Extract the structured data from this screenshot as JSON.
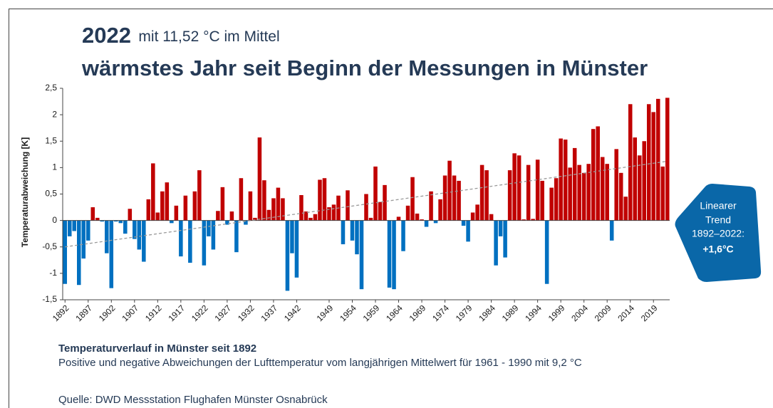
{
  "chart_data": {
    "type": "bar",
    "title": "2022",
    "title_suffix": "mit 11,52 °C im Mittel",
    "subtitle": "wärmstes Jahr seit Beginn der Messungen in Münster",
    "y_label": "Temperaturabweichung [K]",
    "caption_title": "Temperaturverlauf in Münster seit 1892",
    "caption": "Positive und negative Abweichungen der Lufttemperatur vom langjährigen Mittelwert für 1961 - 1990 mit 9,2 °C",
    "source": "Quelle: DWD Messstation Flughafen Münster Osnabrück",
    "x": [
      1892,
      1893,
      1894,
      1895,
      1896,
      1897,
      1898,
      1899,
      1900,
      1901,
      1902,
      1903,
      1904,
      1905,
      1906,
      1907,
      1908,
      1909,
      1910,
      1911,
      1912,
      1913,
      1914,
      1915,
      1916,
      1917,
      1918,
      1919,
      1920,
      1921,
      1922,
      1923,
      1924,
      1925,
      1926,
      1927,
      1928,
      1929,
      1930,
      1931,
      1932,
      1933,
      1934,
      1935,
      1936,
      1937,
      1938,
      1939,
      1940,
      1941,
      1942,
      1943,
      1944,
      1945,
      1946,
      1947,
      1948,
      1949,
      1950,
      1951,
      1952,
      1953,
      1954,
      1955,
      1956,
      1957,
      1958,
      1959,
      1960,
      1961,
      1962,
      1963,
      1964,
      1965,
      1966,
      1967,
      1968,
      1969,
      1970,
      1971,
      1972,
      1973,
      1974,
      1975,
      1976,
      1977,
      1978,
      1979,
      1980,
      1981,
      1982,
      1983,
      1984,
      1985,
      1986,
      1987,
      1988,
      1989,
      1990,
      1991,
      1992,
      1993,
      1994,
      1995,
      1996,
      1997,
      1998,
      1999,
      2000,
      2001,
      2002,
      2003,
      2004,
      2005,
      2006,
      2007,
      2008,
      2009,
      2010,
      2011,
      2012,
      2013,
      2014,
      2015,
      2016,
      2017,
      2018,
      2019,
      2020,
      2021,
      2022
    ],
    "values": [
      -1.2,
      -0.3,
      -0.2,
      -1.22,
      -0.72,
      -0.38,
      0.25,
      0.05,
      -0.02,
      -0.62,
      -1.28,
      -0.02,
      -0.05,
      -0.25,
      0.22,
      -0.35,
      -0.55,
      -0.78,
      0.4,
      1.08,
      0.15,
      0.55,
      0.72,
      -0.05,
      0.28,
      -0.68,
      0.47,
      -0.8,
      0.55,
      0.95,
      -0.85,
      -0.3,
      -0.55,
      0.18,
      0.63,
      -0.08,
      0.17,
      -0.6,
      0.8,
      -0.08,
      0.55,
      0.05,
      1.57,
      0.76,
      0.2,
      0.42,
      0.62,
      0.42,
      -1.33,
      -0.62,
      -1.08,
      0.48,
      0.17,
      0.05,
      0.12,
      0.77,
      0.8,
      0.25,
      0.3,
      0.47,
      -0.45,
      0.57,
      -0.38,
      -0.64,
      -1.3,
      0.5,
      0.05,
      1.02,
      0.35,
      0.67,
      -1.27,
      -1.3,
      0.07,
      -0.58,
      0.28,
      0.82,
      0.13,
      0.02,
      -0.12,
      0.55,
      -0.05,
      0.4,
      0.85,
      1.13,
      0.85,
      0.75,
      -0.1,
      -0.4,
      0.15,
      0.3,
      1.05,
      0.95,
      0.12,
      -0.85,
      -0.3,
      -0.7,
      0.95,
      1.27,
      1.23,
      0.02,
      1.05,
      0.03,
      1.15,
      0.75,
      -1.2,
      0.62,
      0.8,
      1.55,
      1.53,
      1.0,
      1.37,
      1.05,
      0.9,
      1.07,
      1.73,
      1.78,
      1.2,
      1.07,
      -0.38,
      1.35,
      0.9,
      0.45,
      2.2,
      1.57,
      1.23,
      1.5,
      2.2,
      2.05,
      2.3,
      1.02,
      2.32
    ],
    "positive_color": "#c00000",
    "negative_color": "#0070c0",
    "xlim": [
      1891.5,
      2022.5
    ],
    "xticks": [
      1892,
      1897,
      1902,
      1907,
      1912,
      1917,
      1922,
      1927,
      1932,
      1937,
      1942,
      1949,
      1954,
      1959,
      1964,
      1969,
      1974,
      1979,
      1984,
      1989,
      1994,
      1999,
      2004,
      2009,
      2014,
      2019
    ],
    "ylim": [
      -1.5,
      2.5
    ],
    "yticks": [
      {
        "value": -1.5,
        "label": "-1,5"
      },
      -1,
      {
        "value": -0.5,
        "label": "-0,5"
      },
      0,
      {
        "value": 0.5,
        "label": "0,5"
      },
      1,
      {
        "value": 1.5,
        "label": "1,5"
      },
      2,
      {
        "value": 2.5,
        "label": "2,5"
      }
    ],
    "trend": {
      "x": [
        1892,
        2022
      ],
      "values": [
        -0.5,
        1.12
      ],
      "color": "#999999"
    },
    "annotation": {
      "lines": [
        "Linearer",
        "Trend",
        "1892–2022:",
        "+1,6°C"
      ],
      "color": "#0a67a8"
    }
  }
}
